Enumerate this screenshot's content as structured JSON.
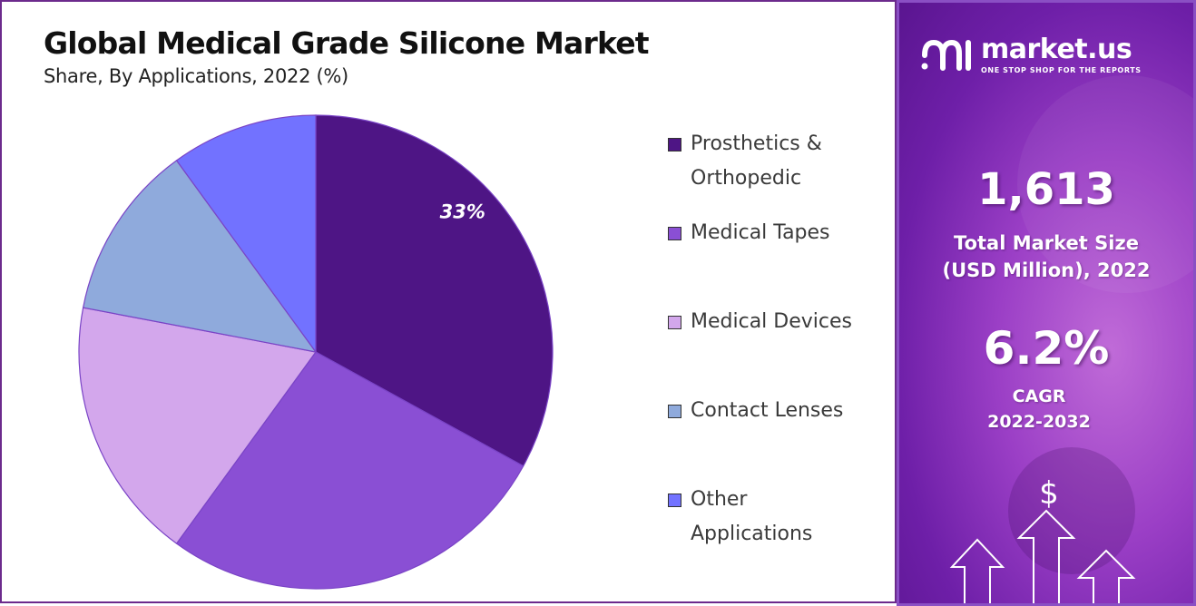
{
  "chart_data": {
    "type": "pie",
    "title": "Global Medical Grade Silicone Market",
    "subtitle": "Share, By Applications, 2022 (%)",
    "categories": [
      "Prosthetics & Orthopedic",
      "Medical Tapes",
      "Medical Devices",
      "Contact Lenses",
      "Other Applications"
    ],
    "values": [
      33,
      27,
      18,
      12,
      10
    ],
    "data_labels": [
      "33%",
      "",
      "",
      "",
      ""
    ],
    "colors": [
      "#4e1585",
      "#8a4fd4",
      "#d3a7ec",
      "#8faadc",
      "#7272ff"
    ],
    "legend_position": "right"
  },
  "legend": {
    "items": [
      {
        "line1": "Prosthetics &",
        "line2": "Orthopedic"
      },
      {
        "line1": "Medical Tapes",
        "line2": ""
      },
      {
        "line1": "Medical Devices",
        "line2": ""
      },
      {
        "line1": "Contact Lenses",
        "line2": ""
      },
      {
        "line1": "Other",
        "line2": "Applications"
      }
    ]
  },
  "brand": {
    "name": "market.us",
    "tagline": "ONE STOP SHOP FOR THE REPORTS"
  },
  "stats": {
    "market_size_value": "1,613",
    "market_size_label_1": "Total Market Size",
    "market_size_label_2": "(USD Million), 2022",
    "cagr_value": "6.2%",
    "cagr_label_1": "CAGR",
    "cagr_label_2": "2022-2032"
  },
  "decor": {
    "currency_symbol": "$"
  }
}
